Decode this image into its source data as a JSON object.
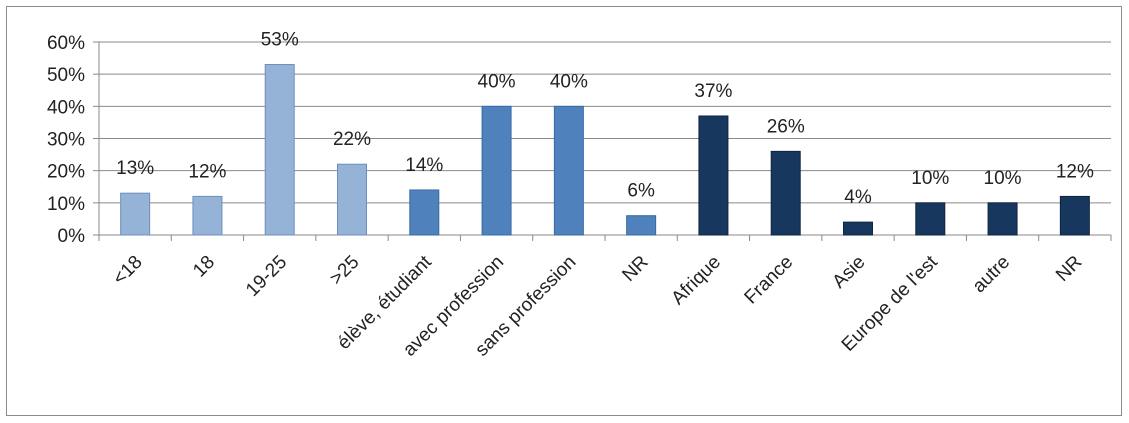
{
  "chart_data": {
    "type": "bar",
    "categories": [
      "<18",
      "18",
      "19-25",
      ">25",
      "élève, étudiant",
      "avec profession",
      "sans profession",
      "NR",
      "Afrique",
      "France",
      "Asie",
      "Europe de l'est",
      "autre",
      "NR"
    ],
    "values": [
      13,
      12,
      53,
      22,
      14,
      40,
      40,
      6,
      37,
      26,
      4,
      10,
      10,
      12
    ],
    "data_labels": [
      "13%",
      "12%",
      "53%",
      "22%",
      "14%",
      "40%",
      "40%",
      "6%",
      "37%",
      "26%",
      "4%",
      "10%",
      "10%",
      "12%"
    ],
    "groups": [
      0,
      0,
      0,
      0,
      1,
      1,
      1,
      1,
      2,
      2,
      2,
      2,
      2,
      2
    ],
    "group_colors": [
      "#95b3d7",
      "#4f81bd",
      "#17375e"
    ],
    "group_border_colors": [
      "#6d8fbd",
      "#3a6aa3",
      "#0f2540"
    ],
    "yticks": [
      "0%",
      "10%",
      "20%",
      "30%",
      "40%",
      "50%",
      "60%"
    ],
    "ylim": [
      0,
      60
    ],
    "grid": true,
    "title": "",
    "xlabel": "",
    "ylabel": ""
  }
}
